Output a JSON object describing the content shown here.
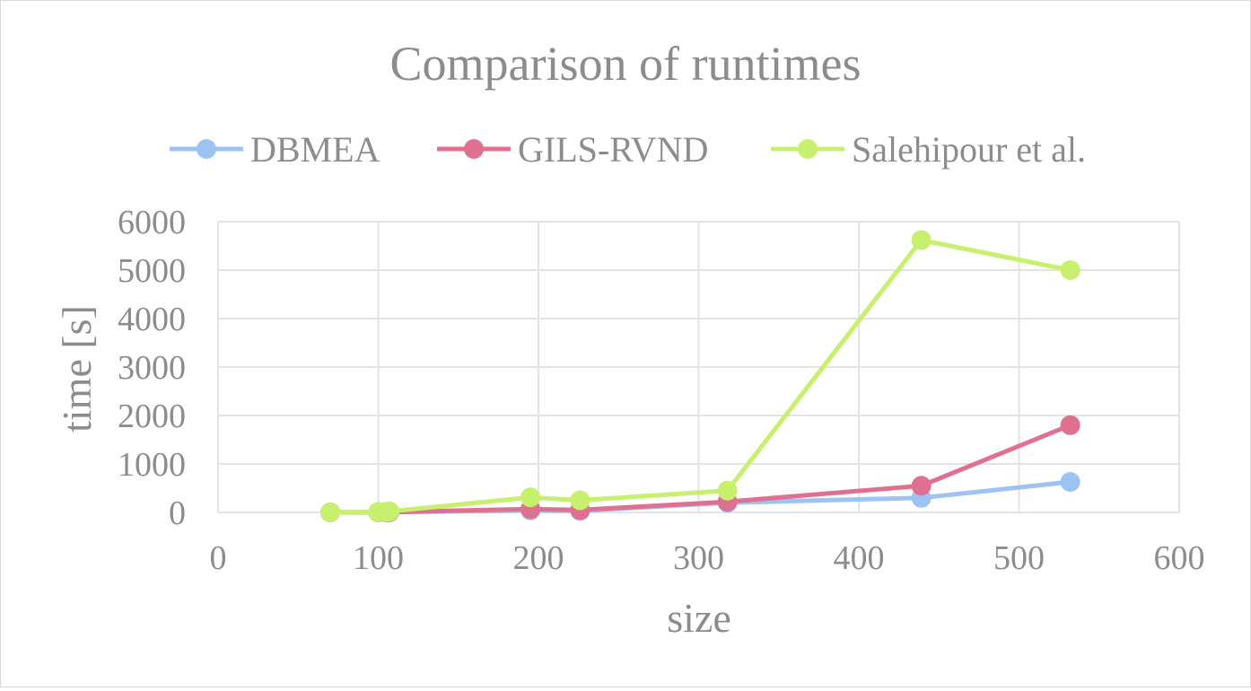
{
  "chart_data": {
    "type": "scatter",
    "title": "Comparison of runtimes",
    "xlabel": "size",
    "ylabel": "time [s]",
    "xlim": [
      0,
      600
    ],
    "ylim": [
      0,
      6000
    ],
    "xticks": [
      "0",
      "100",
      "200",
      "300",
      "400",
      "500",
      "600"
    ],
    "yticks": [
      "0",
      "1000",
      "2000",
      "3000",
      "4000",
      "5000",
      "6000"
    ],
    "grid": true,
    "legend_position": "top",
    "series": [
      {
        "name": "DBMEA",
        "color": "#9dc3f5",
        "points": [
          [
            70,
            0
          ],
          [
            100,
            2
          ],
          [
            105,
            3
          ],
          [
            107,
            4
          ],
          [
            195,
            40
          ],
          [
            226,
            30
          ],
          [
            318,
            200
          ],
          [
            439,
            300
          ],
          [
            532,
            630
          ]
        ]
      },
      {
        "name": "GILS-RVND",
        "color": "#e07090",
        "points": [
          [
            70,
            0
          ],
          [
            100,
            5
          ],
          [
            105,
            6
          ],
          [
            107,
            8
          ],
          [
            195,
            70
          ],
          [
            226,
            50
          ],
          [
            318,
            220
          ],
          [
            439,
            550
          ],
          [
            532,
            1800
          ]
        ]
      },
      {
        "name": "Salehipour et al.",
        "color": "#c6f06e",
        "points": [
          [
            70,
            0
          ],
          [
            100,
            10
          ],
          [
            105,
            15
          ],
          [
            107,
            20
          ],
          [
            195,
            310
          ],
          [
            226,
            250
          ],
          [
            318,
            450
          ],
          [
            439,
            5620
          ],
          [
            532,
            5000
          ]
        ]
      }
    ]
  }
}
